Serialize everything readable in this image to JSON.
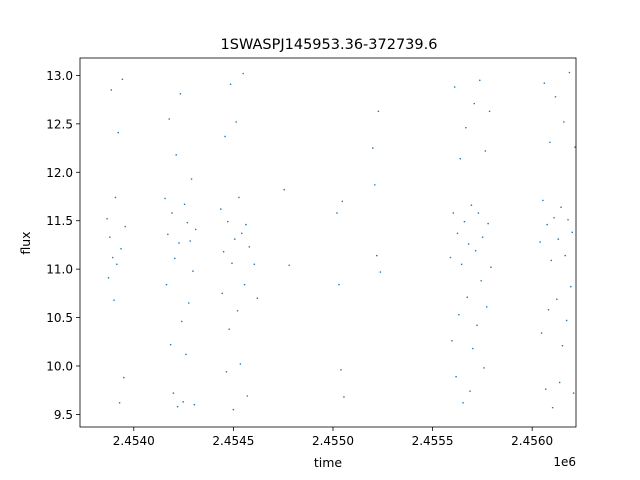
{
  "chart_data": {
    "type": "scatter",
    "title": "1SWASPJ145953.36-372739.6",
    "xlabel": "time",
    "ylabel": "flux",
    "x_offset_label": "1e6",
    "xlim": [
      2453730,
      2456220
    ],
    "ylim": [
      9.37,
      13.18
    ],
    "x_ticks": [
      2454000,
      2454500,
      2455000,
      2455500,
      2456000
    ],
    "x_tick_labels": [
      "2.4540",
      "2.4545",
      "2.4550",
      "2.4555",
      "2.4560"
    ],
    "y_ticks": [
      9.5,
      10.0,
      10.5,
      11.0,
      11.5,
      12.0,
      12.5,
      13.0
    ],
    "y_tick_labels": [
      "9.5",
      "10.0",
      "10.5",
      "11.0",
      "11.5",
      "12.0",
      "12.5",
      "13.0"
    ],
    "grid": false,
    "marker_color": "#1f77b4",
    "points": [
      [
        2453866,
        11.52
      ],
      [
        2453873,
        10.91
      ],
      [
        2453880,
        11.33
      ],
      [
        2453887,
        12.85
      ],
      [
        2453894,
        11.12
      ],
      [
        2453901,
        10.68
      ],
      [
        2453908,
        11.74
      ],
      [
        2453915,
        11.05
      ],
      [
        2453922,
        12.41
      ],
      [
        2453929,
        9.62
      ],
      [
        2453936,
        11.21
      ],
      [
        2453943,
        12.96
      ],
      [
        2453950,
        9.88
      ],
      [
        2453957,
        11.44
      ],
      [
        2454157,
        11.73
      ],
      [
        2454164,
        10.84
      ],
      [
        2454171,
        11.36
      ],
      [
        2454178,
        12.55
      ],
      [
        2454185,
        10.22
      ],
      [
        2454192,
        11.58
      ],
      [
        2454199,
        9.72
      ],
      [
        2454206,
        11.11
      ],
      [
        2454213,
        12.18
      ],
      [
        2454220,
        9.58
      ],
      [
        2454227,
        11.27
      ],
      [
        2454234,
        12.81
      ],
      [
        2454241,
        10.46
      ],
      [
        2454248,
        9.63
      ],
      [
        2454255,
        11.67
      ],
      [
        2454262,
        10.12
      ],
      [
        2454269,
        11.48
      ],
      [
        2454276,
        10.65
      ],
      [
        2454283,
        11.29
      ],
      [
        2454290,
        11.93
      ],
      [
        2454297,
        10.98
      ],
      [
        2454304,
        9.6
      ],
      [
        2454311,
        11.41
      ],
      [
        2454437,
        11.62
      ],
      [
        2454444,
        10.75
      ],
      [
        2454451,
        11.18
      ],
      [
        2454458,
        12.37
      ],
      [
        2454465,
        9.94
      ],
      [
        2454472,
        11.49
      ],
      [
        2454479,
        10.38
      ],
      [
        2454486,
        12.91
      ],
      [
        2454493,
        11.06
      ],
      [
        2454500,
        9.55
      ],
      [
        2454507,
        11.31
      ],
      [
        2454514,
        12.52
      ],
      [
        2454521,
        10.57
      ],
      [
        2454528,
        11.74
      ],
      [
        2454535,
        10.02
      ],
      [
        2454542,
        11.37
      ],
      [
        2454549,
        13.02
      ],
      [
        2454556,
        10.84
      ],
      [
        2454563,
        11.46
      ],
      [
        2454570,
        9.69
      ],
      [
        2454580,
        11.23
      ],
      [
        2454605,
        11.05
      ],
      [
        2454620,
        10.7
      ],
      [
        2454755,
        11.82
      ],
      [
        2454780,
        11.04
      ],
      [
        2455020,
        11.58
      ],
      [
        2455030,
        10.84
      ],
      [
        2455040,
        9.96
      ],
      [
        2455047,
        11.7
      ],
      [
        2455055,
        9.68
      ],
      [
        2455200,
        12.25
      ],
      [
        2455210,
        11.87
      ],
      [
        2455220,
        11.14
      ],
      [
        2455228,
        12.63
      ],
      [
        2455238,
        10.97
      ],
      [
        2455590,
        11.12
      ],
      [
        2455597,
        10.26
      ],
      [
        2455604,
        11.58
      ],
      [
        2455611,
        12.88
      ],
      [
        2455618,
        9.89
      ],
      [
        2455625,
        11.37
      ],
      [
        2455632,
        10.53
      ],
      [
        2455639,
        12.14
      ],
      [
        2455646,
        11.05
      ],
      [
        2455653,
        9.62
      ],
      [
        2455660,
        11.49
      ],
      [
        2455667,
        12.46
      ],
      [
        2455674,
        10.71
      ],
      [
        2455681,
        11.26
      ],
      [
        2455688,
        9.74
      ],
      [
        2455695,
        11.66
      ],
      [
        2455702,
        10.18
      ],
      [
        2455709,
        12.71
      ],
      [
        2455716,
        11.19
      ],
      [
        2455723,
        10.42
      ],
      [
        2455730,
        11.58
      ],
      [
        2455737,
        12.95
      ],
      [
        2455744,
        10.88
      ],
      [
        2455751,
        11.33
      ],
      [
        2455758,
        9.98
      ],
      [
        2455765,
        12.22
      ],
      [
        2455772,
        10.61
      ],
      [
        2455779,
        11.47
      ],
      [
        2455786,
        12.63
      ],
      [
        2455793,
        11.02
      ],
      [
        2456040,
        11.28
      ],
      [
        2456047,
        10.34
      ],
      [
        2456054,
        11.71
      ],
      [
        2456061,
        12.92
      ],
      [
        2456068,
        9.76
      ],
      [
        2456075,
        11.46
      ],
      [
        2456082,
        10.58
      ],
      [
        2456089,
        12.31
      ],
      [
        2456096,
        11.09
      ],
      [
        2456103,
        9.57
      ],
      [
        2456110,
        11.53
      ],
      [
        2456117,
        12.78
      ],
      [
        2456124,
        10.69
      ],
      [
        2456131,
        11.31
      ],
      [
        2456138,
        9.83
      ],
      [
        2456145,
        11.64
      ],
      [
        2456152,
        10.21
      ],
      [
        2456159,
        12.52
      ],
      [
        2456166,
        11.14
      ],
      [
        2456173,
        10.47
      ],
      [
        2456180,
        11.51
      ],
      [
        2456187,
        13.03
      ],
      [
        2456194,
        10.82
      ],
      [
        2456201,
        11.38
      ],
      [
        2456208,
        9.72
      ],
      [
        2456215,
        12.26
      ]
    ]
  }
}
